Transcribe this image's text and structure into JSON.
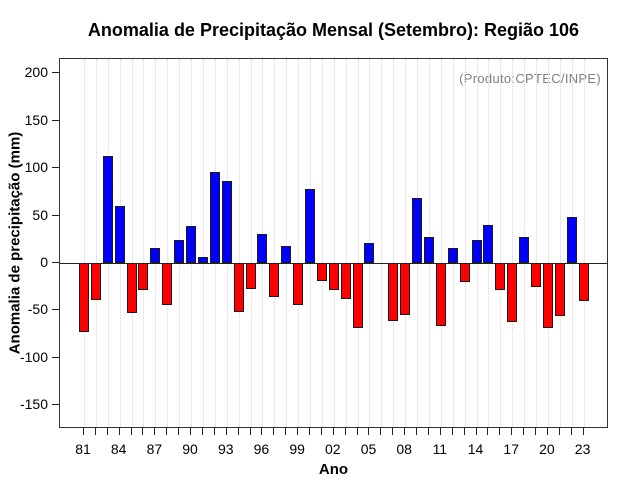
{
  "chart_data": {
    "type": "bar",
    "title": "Anomalia de Precipitação Mensal (Setembro): Região 106",
    "annotation": "(Produto:CPTEC/INPE)",
    "xlabel": "Ano",
    "ylabel": "Anomalia de precipitação (mm)",
    "ylim": [
      -175,
      215
    ],
    "yticks": [
      200,
      150,
      100,
      50,
      0,
      -50,
      -100,
      -150
    ],
    "x_tick_labels": [
      "81",
      "84",
      "87",
      "90",
      "93",
      "96",
      "99",
      "02",
      "05",
      "08",
      "11",
      "14",
      "17",
      "20",
      "23"
    ],
    "x_label_every": 3,
    "years": [
      1981,
      1982,
      1983,
      1984,
      1985,
      1986,
      1987,
      1988,
      1989,
      1990,
      1991,
      1992,
      1993,
      1994,
      1995,
      1996,
      1997,
      1998,
      1999,
      2000,
      2001,
      2002,
      2003,
      2004,
      2005,
      2006,
      2007,
      2008,
      2009,
      2010,
      2011,
      2012,
      2013,
      2014,
      2015,
      2016,
      2017,
      2018,
      2019,
      2020,
      2021,
      2022,
      2023
    ],
    "values": [
      -73,
      -39,
      113,
      60,
      -53,
      -28,
      16,
      -44,
      24,
      39,
      6,
      96,
      86,
      -52,
      -27,
      31,
      -36,
      18,
      -44,
      78,
      -19,
      -29,
      -38,
      -69,
      21,
      0,
      -61,
      -55,
      68,
      27,
      -66,
      16,
      -20,
      24,
      40,
      -29,
      -62,
      27,
      -25,
      -69,
      -56,
      48,
      -40
    ],
    "grid": "vertical-dotted-per-year",
    "legend": "none",
    "colors": {
      "positive": "#0000ff",
      "negative": "#ff0000",
      "bar_border": "#1a1a1a",
      "annotation_text": "#7f7f7f",
      "gridline": "#d4d4d4",
      "axis": "#222222"
    }
  }
}
